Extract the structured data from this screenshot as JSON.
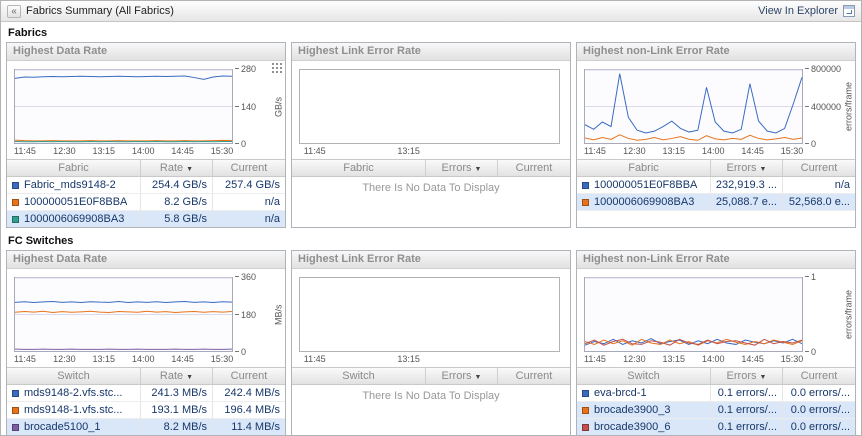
{
  "header": {
    "title": "Fabrics Summary (All Fabrics)",
    "action": "View In Explorer",
    "collapse_icon": "«"
  },
  "sections": [
    {
      "label": "Fabrics"
    },
    {
      "label": "FC Switches"
    }
  ],
  "panels": [
    {
      "title": "Highest Data Rate",
      "table": {
        "columns": [
          "Fabric",
          "Rate",
          "Current"
        ],
        "sort_col": 1,
        "sort_indicator": "▼",
        "rows": [
          {
            "color": "#3a6bc0",
            "hl": false,
            "cells": [
              "Fabric_mds9148-2",
              "254.4 GB/s",
              "257.4 GB/s"
            ]
          },
          {
            "color": "#e8731a",
            "hl": false,
            "cells": [
              "100000051E0F8BBA",
              "8.2 GB/s",
              "n/a"
            ]
          },
          {
            "color": "#2f9e8f",
            "hl": true,
            "cells": [
              "1000006069908BA3",
              "5.8 GB/s",
              "n/a"
            ]
          }
        ]
      }
    },
    {
      "title": "Highest Link Error Rate",
      "table": {
        "columns": [
          "Fabric",
          "Errors",
          "Current"
        ],
        "sort_col": 1,
        "sort_indicator": "▼",
        "rows": [],
        "empty_text": "There Is No Data To Display"
      }
    },
    {
      "title": "Highest non-Link Error Rate",
      "table": {
        "columns": [
          "Fabric",
          "Errors",
          "Current"
        ],
        "sort_col": 1,
        "sort_indicator": "▼",
        "rows": [
          {
            "color": "#3a6bc0",
            "hl": false,
            "cells": [
              "100000051E0F8BBA",
              "232,919.3 ...",
              "n/a"
            ]
          },
          {
            "color": "#e8731a",
            "hl": true,
            "cells": [
              "1000006069908BA3",
              "25,088.7 e...",
              "52,568.0 e..."
            ]
          }
        ]
      }
    },
    {
      "title": "Highest Data Rate",
      "table": {
        "columns": [
          "Switch",
          "Rate",
          "Current"
        ],
        "sort_col": 1,
        "sort_indicator": "▼",
        "rows": [
          {
            "color": "#3a6bc0",
            "hl": false,
            "cells": [
              "mds9148-2.vfs.stc...",
              "241.3 MB/s",
              "242.4 MB/s"
            ]
          },
          {
            "color": "#e8731a",
            "hl": false,
            "cells": [
              "mds9148-1.vfs.stc...",
              "193.1 MB/s",
              "196.4 MB/s"
            ]
          },
          {
            "color": "#7d5fa8",
            "hl": true,
            "cells": [
              "brocade5100_1",
              "8.2 MB/s",
              "11.4 MB/s"
            ]
          }
        ]
      }
    },
    {
      "title": "Highest Link Error Rate",
      "table": {
        "columns": [
          "Switch",
          "Errors",
          "Current"
        ],
        "sort_col": 1,
        "sort_indicator": "▼",
        "rows": [],
        "empty_text": "There Is No Data To Display"
      }
    },
    {
      "title": "Highest non-Link Error Rate",
      "table": {
        "columns": [
          "Switch",
          "Errors",
          "Current"
        ],
        "sort_col": 1,
        "sort_indicator": "▼",
        "rows": [
          {
            "color": "#3a6bc0",
            "hl": false,
            "cells": [
              "eva-brcd-1",
              "0.1 errors/...",
              "0.0 errors/..."
            ]
          },
          {
            "color": "#e8731a",
            "hl": true,
            "cells": [
              "brocade3900_3",
              "0.1 errors/...",
              "0.0 errors/..."
            ]
          },
          {
            "color": "#c0504d",
            "hl": true,
            "cells": [
              "brocade3900_6",
              "0.1 errors/...",
              "0.0 errors/..."
            ]
          }
        ]
      }
    }
  ],
  "chart_data": [
    {
      "type": "line",
      "title": "Fabrics - Highest Data Rate",
      "ylabel": "GB/s",
      "ylim": [
        0,
        280
      ],
      "grid": true,
      "y_ticks": [
        {
          "v": 0,
          "t": "0"
        },
        {
          "v": 140,
          "t": "140"
        },
        {
          "v": 280,
          "t": "280"
        }
      ],
      "x_ticks": [
        {
          "p": 0.05,
          "t": "11:45"
        },
        {
          "p": 0.23,
          "t": "12:30"
        },
        {
          "p": 0.41,
          "t": "13:15"
        },
        {
          "p": 0.59,
          "t": "14:00"
        },
        {
          "p": 0.77,
          "t": "14:45"
        },
        {
          "p": 0.95,
          "t": "15:30"
        }
      ],
      "series": [
        {
          "name": "Fabric_mds9148-2",
          "color": "#3a6bc0",
          "values": [
            248,
            253,
            252,
            254,
            255,
            254,
            255,
            256,
            255,
            254,
            255,
            256,
            255,
            254,
            255,
            256,
            255,
            256,
            257,
            251,
            244,
            253,
            257,
            256
          ]
        },
        {
          "name": "100000051E0F8BBA",
          "color": "#e8731a",
          "values": [
            11,
            9,
            8,
            8,
            9,
            8,
            8,
            8,
            9,
            8,
            8,
            9,
            8,
            8,
            8,
            9,
            8,
            8,
            9,
            8,
            8,
            9,
            10,
            9
          ]
        },
        {
          "name": "1000006069908BA3",
          "color": "#2f9e8f",
          "values": [
            6,
            5,
            5,
            6,
            5,
            6,
            5,
            5,
            6,
            5,
            6,
            5,
            5,
            6,
            5,
            6,
            5,
            5,
            6,
            5,
            6,
            5,
            6,
            6
          ]
        }
      ]
    },
    {
      "type": "line",
      "title": "Fabrics - Highest Link Error Rate",
      "empty": true,
      "no_data_text": "There Is No Data To Display",
      "x_ticks": [
        {
          "p": 0.06,
          "t": "11:45"
        },
        {
          "p": 0.42,
          "t": "13:15"
        }
      ],
      "series": []
    },
    {
      "type": "line",
      "title": "Fabrics - Highest non-Link Error Rate",
      "ylabel": "errors/frame",
      "ylim": [
        0,
        800000
      ],
      "grid": true,
      "y_ticks": [
        {
          "v": 0,
          "t": "0"
        },
        {
          "v": 400000,
          "t": "400000"
        },
        {
          "v": 800000,
          "t": "800000"
        }
      ],
      "x_ticks": [
        {
          "p": 0.05,
          "t": "11:45"
        },
        {
          "p": 0.23,
          "t": "12:30"
        },
        {
          "p": 0.41,
          "t": "13:15"
        },
        {
          "p": 0.59,
          "t": "14:00"
        },
        {
          "p": 0.77,
          "t": "14:45"
        },
        {
          "p": 0.95,
          "t": "15:30"
        }
      ],
      "series": [
        {
          "name": "100000051E0F8BBA",
          "color": "#3a6bc0",
          "values": [
            200000,
            150000,
            230000,
            180000,
            760000,
            280000,
            140000,
            110000,
            130000,
            180000,
            240000,
            160000,
            120000,
            140000,
            610000,
            230000,
            130000,
            110000,
            150000,
            650000,
            240000,
            130000,
            110000,
            160000,
            430000,
            720000
          ]
        },
        {
          "name": "1000006069908BA3",
          "color": "#e8731a",
          "values": [
            55000,
            35000,
            60000,
            40000,
            90000,
            50000,
            30000,
            40000,
            60000,
            35000,
            50000,
            70000,
            40000,
            30000,
            80000,
            45000,
            35000,
            50000,
            40000,
            85000,
            50000,
            35000,
            45000,
            60000,
            40000,
            55000
          ]
        }
      ]
    },
    {
      "type": "line",
      "title": "FC Switches - Highest Data Rate",
      "ylabel": "MB/s",
      "ylim": [
        0,
        360
      ],
      "grid": true,
      "y_ticks": [
        {
          "v": 0,
          "t": "0"
        },
        {
          "v": 180,
          "t": "180"
        },
        {
          "v": 360,
          "t": "360"
        }
      ],
      "x_ticks": [
        {
          "p": 0.05,
          "t": "11:45"
        },
        {
          "p": 0.23,
          "t": "12:30"
        },
        {
          "p": 0.41,
          "t": "13:15"
        },
        {
          "p": 0.59,
          "t": "14:00"
        },
        {
          "p": 0.77,
          "t": "14:45"
        },
        {
          "p": 0.95,
          "t": "15:30"
        }
      ],
      "series": [
        {
          "name": "mds9148-2.vfs.stc...",
          "color": "#3a6bc0",
          "values": [
            240,
            243,
            239,
            242,
            244,
            240,
            242,
            239,
            243,
            241,
            240,
            244,
            239,
            242,
            240,
            243,
            239,
            242,
            244,
            240,
            242,
            239,
            243,
            241
          ]
        },
        {
          "name": "mds9148-1.vfs.stc...",
          "color": "#e8731a",
          "values": [
            191,
            195,
            192,
            196,
            190,
            194,
            191,
            193,
            196,
            192,
            190,
            195,
            193,
            191,
            196,
            192,
            194,
            190,
            193,
            195,
            191,
            194,
            192,
            195
          ]
        },
        {
          "name": "brocade5100_1",
          "color": "#7d5fa8",
          "values": [
            9,
            8,
            8,
            9,
            8,
            8,
            9,
            8,
            8,
            8,
            9,
            8,
            8,
            9,
            8,
            8,
            8,
            9,
            8,
            8,
            9,
            8,
            8,
            9
          ]
        }
      ]
    },
    {
      "type": "line",
      "title": "FC Switches - Highest Link Error Rate",
      "empty": true,
      "no_data_text": "There Is No Data To Display",
      "x_ticks": [
        {
          "p": 0.06,
          "t": "11:45"
        },
        {
          "p": 0.42,
          "t": "13:15"
        }
      ],
      "series": []
    },
    {
      "type": "line",
      "title": "FC Switches - Highest non-Link Error Rate",
      "ylabel": "errors/frame",
      "ylim": [
        0,
        1
      ],
      "grid": true,
      "y_ticks": [
        {
          "v": 0,
          "t": "0"
        },
        {
          "v": 1,
          "t": "1"
        }
      ],
      "x_ticks": [
        {
          "p": 0.05,
          "t": "11:45"
        },
        {
          "p": 0.23,
          "t": "12:30"
        },
        {
          "p": 0.41,
          "t": "13:15"
        },
        {
          "p": 0.59,
          "t": "14:00"
        },
        {
          "p": 0.77,
          "t": "14:45"
        },
        {
          "p": 0.95,
          "t": "15:30"
        }
      ],
      "series": [
        {
          "name": "eva-brcd-1",
          "color": "#3a6bc0",
          "values": [
            0.08,
            0.13,
            0.1,
            0.16,
            0.09,
            0.14,
            0.11,
            0.17,
            0.1,
            0.13,
            0.15,
            0.09,
            0.14,
            0.1,
            0.16,
            0.11,
            0.09,
            0.15,
            0.12,
            0.1,
            0.14,
            0.11,
            0.16,
            0.1
          ]
        },
        {
          "name": "brocade3900_3",
          "color": "#e8731a",
          "values": [
            0.13,
            0.09,
            0.15,
            0.1,
            0.14,
            0.08,
            0.16,
            0.11,
            0.09,
            0.15,
            0.1,
            0.13,
            0.08,
            0.14,
            0.11,
            0.16,
            0.12,
            0.09,
            0.13,
            0.1,
            0.15,
            0.12,
            0.09,
            0.14
          ]
        },
        {
          "name": "brocade3900_6",
          "color": "#c0504d",
          "values": [
            0.1,
            0.15,
            0.08,
            0.13,
            0.16,
            0.1,
            0.09,
            0.14,
            0.12,
            0.08,
            0.16,
            0.11,
            0.09,
            0.15,
            0.1,
            0.13,
            0.14,
            0.11,
            0.08,
            0.16,
            0.1,
            0.13,
            0.11,
            0.15
          ]
        }
      ]
    }
  ]
}
